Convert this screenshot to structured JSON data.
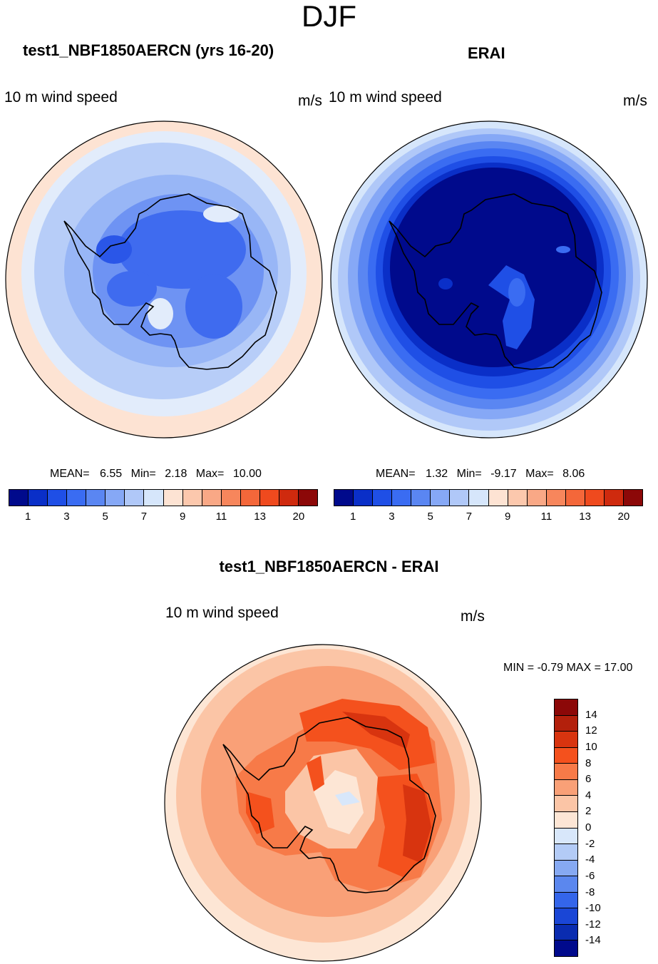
{
  "header": {
    "season": "DJF"
  },
  "panels": [
    {
      "title": "test1_NBF1850AERCN (yrs 16-20)",
      "variable": "10 m wind speed",
      "units": "m/s",
      "stats": {
        "mean_label": "MEAN=",
        "mean": "6.55",
        "min_label": "Min=",
        "min": "2.18",
        "max_label": "Max=",
        "max": "10.00"
      }
    },
    {
      "title": "ERAI",
      "variable": "10 m wind speed",
      "units": "m/s",
      "stats": {
        "mean_label": "MEAN=",
        "mean": "1.32",
        "min_label": "Min=",
        "min": "-9.17",
        "max_label": "Max=",
        "max": "8.06"
      }
    }
  ],
  "diff": {
    "title": "test1_NBF1850AERCN - ERAI",
    "variable": "10 m wind speed",
    "units": "m/s",
    "minmax": "MIN =  -0.79 MAX =  17.00"
  },
  "chart_data": [
    {
      "type": "heatmap",
      "projection": "south-polar-stereographic",
      "title": "test1_NBF1850AERCN (yrs 16-20)",
      "variable": "10 m wind speed",
      "units": "m/s",
      "mean": 6.55,
      "min": 2.18,
      "max": 10.0,
      "colorbar": {
        "orientation": "horizontal",
        "colors": [
          "#000a8c",
          "#0a2fc8",
          "#1f4fe6",
          "#3a6cf2",
          "#5a86f2",
          "#86a8f6",
          "#b0c8f8",
          "#d6e6fb",
          "#fde3d3",
          "#fcc8ad",
          "#f9a886",
          "#f7865c",
          "#f4673a",
          "#ef4a1e",
          "#cf2a0e",
          "#8c0808"
        ],
        "tick_labels": [
          "1",
          "3",
          "5",
          "7",
          "9",
          "11",
          "13",
          "20"
        ]
      }
    },
    {
      "type": "heatmap",
      "projection": "south-polar-stereographic",
      "title": "ERAI",
      "variable": "10 m wind speed",
      "units": "m/s",
      "mean": 1.32,
      "min": -9.17,
      "max": 8.06,
      "colorbar": {
        "orientation": "horizontal",
        "colors": [
          "#000a8c",
          "#0a2fc8",
          "#1f4fe6",
          "#3a6cf2",
          "#5a86f2",
          "#86a8f6",
          "#b0c8f8",
          "#d6e6fb",
          "#fde3d3",
          "#fcc8ad",
          "#f9a886",
          "#f7865c",
          "#f4673a",
          "#ef4a1e",
          "#cf2a0e",
          "#8c0808"
        ],
        "tick_labels": [
          "1",
          "3",
          "5",
          "7",
          "9",
          "11",
          "13",
          "20"
        ]
      }
    },
    {
      "type": "heatmap",
      "projection": "south-polar-stereographic",
      "title": "test1_NBF1850AERCN - ERAI",
      "variable": "10 m wind speed",
      "units": "m/s",
      "min": -0.79,
      "max": 17.0,
      "colorbar": {
        "orientation": "vertical",
        "colors": [
          "#8c0808",
          "#b3200c",
          "#d8340f",
          "#f4511d",
          "#f77a48",
          "#f9a077",
          "#fbc5a6",
          "#fde6d5",
          "#d8e7fa",
          "#b3cbf6",
          "#86a9f2",
          "#5b87ee",
          "#3465ea",
          "#1a46d6",
          "#0a2cb0",
          "#000a8c"
        ],
        "tick_labels": [
          "14",
          "12",
          "10",
          "8",
          "6",
          "4",
          "2",
          "0",
          "-2",
          "-4",
          "-6",
          "-8",
          "-10",
          "-12",
          "-14"
        ]
      }
    }
  ]
}
